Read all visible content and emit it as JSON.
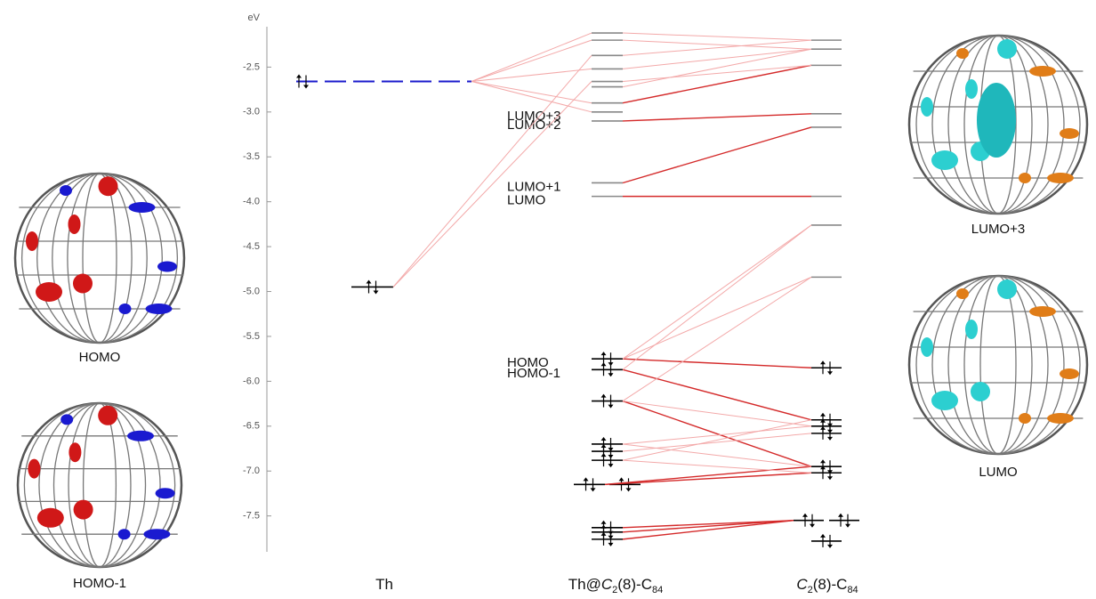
{
  "axis": {
    "title": "eV",
    "lim": [
      -7.9,
      -2.05
    ],
    "ticks": [
      -2.5,
      {
        "value": -3,
        "label": "-3.0"
      },
      -3.5,
      {
        "value": -4,
        "label": "-4.0"
      },
      -4.5,
      {
        "value": -5,
        "label": "-5.0"
      },
      -5.5,
      {
        "value": -6,
        "label": "-6.0"
      },
      -6.5,
      {
        "value": -7,
        "label": "-7.0"
      },
      -7.5
    ]
  },
  "columns": [
    {
      "name": [
        "Th"
      ],
      "levels": [
        {
          "energy": -2.66,
          "occupied": true
        },
        {
          "energy": -4.95,
          "occupied": true
        }
      ]
    },
    {
      "name": [
        "Th@",
        "C",
        "2",
        "(8)-C",
        "84"
      ],
      "levels": [
        {
          "energy": -2.12
        },
        {
          "energy": -2.2
        },
        {
          "energy": -2.37
        },
        {
          "energy": -2.52
        },
        {
          "energy": -2.66
        },
        {
          "energy": -2.72
        },
        {
          "energy": -2.9
        },
        {
          "energy": -3.0,
          "label": "LUMO+3"
        },
        {
          "energy": -3.1,
          "label": "LUMO+2"
        },
        {
          "energy": -3.79,
          "label": "LUMO+1"
        },
        {
          "energy": -3.94,
          "label": "LUMO"
        },
        {
          "energy": -5.75,
          "occupied": true,
          "label": "HOMO"
        },
        {
          "energy": -5.87,
          "occupied": true,
          "label": "HOMO-1"
        },
        {
          "energy": -6.22,
          "occupied": true
        },
        {
          "energy": -6.7,
          "occupied": true
        },
        {
          "energy": -6.78,
          "occupied": true
        },
        {
          "energy": -6.88,
          "occupied": true
        },
        {
          "energy": -7.15,
          "occupied": true
        },
        {
          "energy": -7.15,
          "occupied": true
        },
        {
          "energy": -7.63,
          "occupied": true
        },
        {
          "energy": -7.68,
          "occupied": true
        },
        {
          "energy": -7.76,
          "occupied": true
        }
      ]
    },
    {
      "name": [
        "C",
        "2",
        "(8)-C",
        "84"
      ],
      "levels": [
        {
          "energy": -2.2
        },
        {
          "energy": -2.3
        },
        {
          "energy": -2.48
        },
        {
          "energy": -3.02
        },
        {
          "energy": -3.17
        },
        {
          "energy": -3.94
        },
        {
          "energy": -4.26
        },
        {
          "energy": -4.84
        },
        {
          "energy": -5.85,
          "occupied": true
        },
        {
          "energy": -6.43,
          "occupied": true
        },
        {
          "energy": -6.5,
          "occupied": true
        },
        {
          "energy": -6.58,
          "occupied": true
        },
        {
          "energy": -6.95,
          "occupied": true
        },
        {
          "energy": -7.02,
          "occupied": true
        },
        {
          "energy": -7.55,
          "occupied": true
        },
        {
          "energy": -7.55,
          "occupied": true
        },
        {
          "energy": -7.78,
          "occupied": true
        }
      ]
    }
  ],
  "orbitals": [
    {
      "caption": "HOMO"
    },
    {
      "caption": "HOMO-1"
    },
    {
      "caption": "LUMO+3"
    },
    {
      "caption": "LUMO"
    }
  ]
}
